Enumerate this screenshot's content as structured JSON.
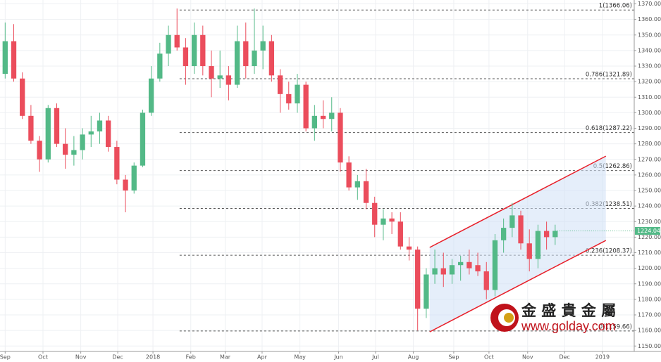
{
  "chart_data": {
    "type": "candlestick",
    "x": [
      0,
      1,
      2,
      3,
      4,
      5,
      6,
      7,
      8,
      9,
      10,
      11,
      12,
      13,
      14,
      15,
      16,
      17,
      18,
      19,
      20,
      21,
      22,
      23,
      24,
      25,
      26,
      27,
      28,
      29,
      30,
      31,
      32,
      33,
      34,
      35,
      36,
      37,
      38,
      39,
      40,
      41,
      42,
      43,
      44,
      45,
      46,
      47,
      48,
      49,
      50,
      51,
      52,
      53,
      54,
      55,
      56,
      57,
      58,
      59,
      60,
      61,
      62,
      63,
      64
    ],
    "open": [
      1325,
      1346,
      1322,
      1298,
      1282,
      1270,
      1303,
      1280,
      1273,
      1276,
      1286,
      1288,
      1295,
      1278,
      1257,
      1250,
      1266,
      1300,
      1322,
      1338,
      1350,
      1342,
      1330,
      1350,
      1330,
      1322,
      1324,
      1318,
      1346,
      1330,
      1340,
      1346,
      1324,
      1312,
      1306,
      1318,
      1290,
      1298,
      1296,
      1300,
      1268,
      1252,
      1256,
      1242,
      1228,
      1232,
      1230,
      1214,
      1212,
      1174,
      1196,
      1200,
      1196,
      1202,
      1204,
      1202,
      1198,
      1186,
      1218,
      1226,
      1234,
      1216,
      1206,
      1224,
      1220
    ],
    "high": [
      1358,
      1357,
      1326,
      1305,
      1285,
      1305,
      1306,
      1290,
      1285,
      1290,
      1298,
      1300,
      1298,
      1282,
      1260,
      1268,
      1302,
      1330,
      1345,
      1356,
      1367,
      1348,
      1358,
      1356,
      1340,
      1340,
      1330,
      1356,
      1358,
      1367,
      1356,
      1350,
      1328,
      1320,
      1325,
      1320,
      1305,
      1308,
      1310,
      1303,
      1272,
      1260,
      1264,
      1246,
      1238,
      1236,
      1236,
      1220,
      1214,
      1200,
      1212,
      1210,
      1206,
      1208,
      1212,
      1210,
      1204,
      1222,
      1232,
      1242,
      1237,
      1225,
      1228,
      1230,
      1228
    ],
    "low": [
      1322,
      1320,
      1296,
      1280,
      1262,
      1268,
      1278,
      1264,
      1266,
      1270,
      1278,
      1280,
      1275,
      1254,
      1236,
      1248,
      1265,
      1298,
      1320,
      1330,
      1340,
      1318,
      1325,
      1324,
      1310,
      1316,
      1308,
      1316,
      1322,
      1325,
      1328,
      1320,
      1300,
      1302,
      1300,
      1288,
      1282,
      1290,
      1288,
      1262,
      1250,
      1244,
      1238,
      1220,
      1218,
      1222,
      1212,
      1205,
      1160,
      1168,
      1190,
      1188,
      1190,
      1192,
      1196,
      1195,
      1180,
      1182,
      1210,
      1220,
      1212,
      1198,
      1200,
      1212,
      1215
    ],
    "close": [
      1346,
      1322,
      1298,
      1282,
      1270,
      1303,
      1280,
      1273,
      1276,
      1286,
      1288,
      1295,
      1278,
      1257,
      1250,
      1266,
      1300,
      1322,
      1338,
      1350,
      1342,
      1330,
      1350,
      1330,
      1322,
      1324,
      1318,
      1346,
      1330,
      1340,
      1346,
      1324,
      1312,
      1306,
      1318,
      1290,
      1298,
      1296,
      1300,
      1268,
      1252,
      1256,
      1242,
      1228,
      1232,
      1230,
      1214,
      1212,
      1174,
      1196,
      1200,
      1196,
      1202,
      1204,
      1200,
      1198,
      1186,
      1218,
      1226,
      1234,
      1216,
      1206,
      1224,
      1220,
      1224.04
    ],
    "up_color": "#53b987",
    "down_color": "#eb4d5c",
    "xlim": [
      -0.6,
      73.2
    ],
    "ylim": [
      1146.5,
      1372.5
    ],
    "xticks": [
      {
        "value": 0,
        "label": "Sep"
      },
      {
        "value": 4.4,
        "label": "Oct"
      },
      {
        "value": 8.8,
        "label": "Nov"
      },
      {
        "value": 13.1,
        "label": "Dec"
      },
      {
        "value": 17.2,
        "label": "2018"
      },
      {
        "value": 21.6,
        "label": "Feb"
      },
      {
        "value": 25.6,
        "label": "Mar"
      },
      {
        "value": 29.9,
        "label": "Apr"
      },
      {
        "value": 34.3,
        "label": "May"
      },
      {
        "value": 38.8,
        "label": "Jun"
      },
      {
        "value": 43.1,
        "label": "Jul"
      },
      {
        "value": 47.5,
        "label": "Aug"
      },
      {
        "value": 52.2,
        "label": "Sep"
      },
      {
        "value": 56.3,
        "label": "Oct"
      },
      {
        "value": 60.8,
        "label": "Nov"
      },
      {
        "value": 65.1,
        "label": "Dec"
      },
      {
        "value": 69.5,
        "label": "2019"
      }
    ],
    "yticks": [
      {
        "value": 1150,
        "label": "1150.00"
      },
      {
        "value": 1160,
        "label": "1160.00"
      },
      {
        "value": 1170,
        "label": "1170.00"
      },
      {
        "value": 1180,
        "label": "1180.00"
      },
      {
        "value": 1190,
        "label": "1190.00"
      },
      {
        "value": 1200,
        "label": "1200.00"
      },
      {
        "value": 1210,
        "label": "1210.00"
      },
      {
        "value": 1220,
        "label": "1220.00"
      },
      {
        "value": 1230,
        "label": "1230.00"
      },
      {
        "value": 1240,
        "label": "1240.00"
      },
      {
        "value": 1250,
        "label": "1250.00"
      },
      {
        "value": 1260,
        "label": "1260.00"
      },
      {
        "value": 1270,
        "label": "1270.00"
      },
      {
        "value": 1280,
        "label": "1280.00"
      },
      {
        "value": 1290,
        "label": "1290.00"
      },
      {
        "value": 1300,
        "label": "1300.00"
      },
      {
        "value": 1310,
        "label": "1310.00"
      },
      {
        "value": 1320,
        "label": "1320.00"
      },
      {
        "value": 1330,
        "label": "1330.00"
      },
      {
        "value": 1340,
        "label": "1340.00"
      },
      {
        "value": 1350,
        "label": "1350.00"
      },
      {
        "value": 1360,
        "label": "1360.00"
      },
      {
        "value": 1370,
        "label": "1370.00"
      }
    ],
    "grid": true,
    "fib_start": 20.3,
    "fib_levels": [
      {
        "value": 1366.06,
        "label": "1(1366.06)"
      },
      {
        "value": 1321.89,
        "label": "0.786(1321.89)"
      },
      {
        "value": 1287.22,
        "label": "0.618(1287.22)"
      },
      {
        "value": 1262.86,
        "label": "0.5(1262.86)"
      },
      {
        "value": 1238.51,
        "label": "0.382(1238.51)"
      },
      {
        "value": 1208.37,
        "label": "0.236(1208.37)"
      },
      {
        "value": 1159.66,
        "label": "0(1159.66)"
      }
    ],
    "channel_x": [
      49.4,
      69.9
    ],
    "channel_upper": [
      1213.4,
      1272.1
    ],
    "channel_lower": [
      1159.1,
      1217.9
    ],
    "channel_color": "#e8202a",
    "last_price": {
      "value": 1224.04,
      "label": "1224.04"
    },
    "watermark": {
      "brand": "金 盛 貴 金 屬",
      "url": "www.golday.com"
    }
  }
}
